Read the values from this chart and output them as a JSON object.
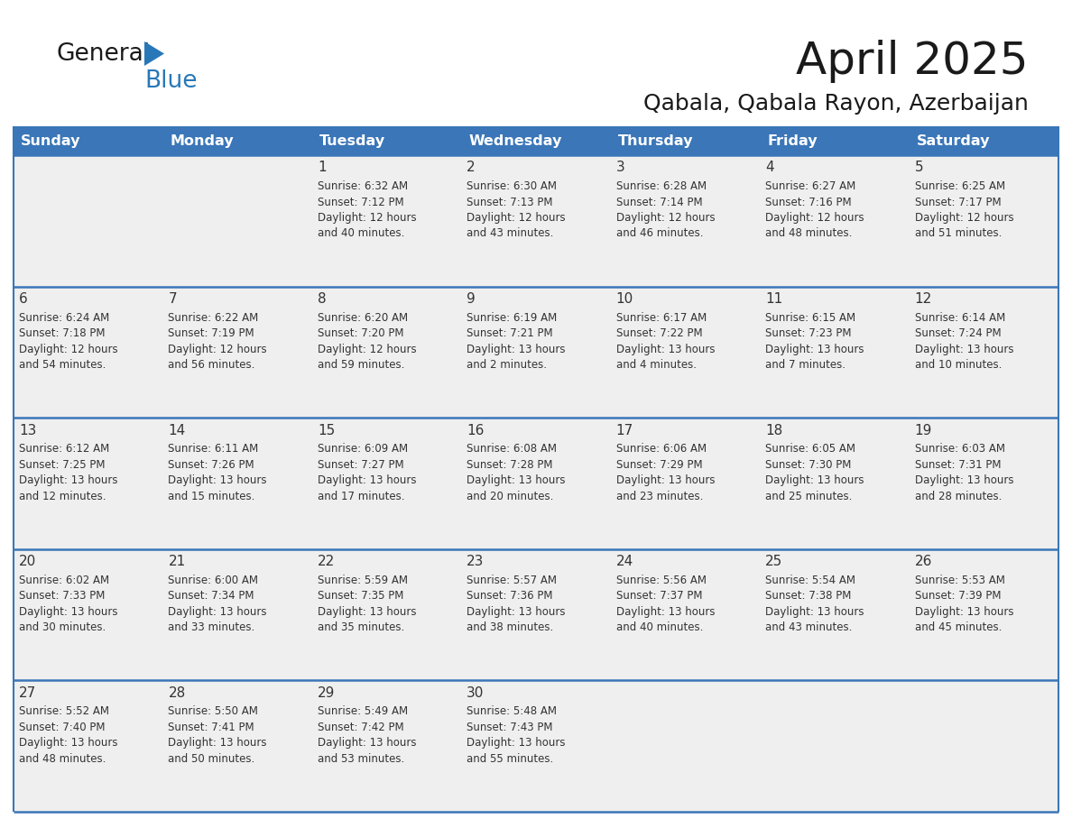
{
  "title": "April 2025",
  "subtitle": "Qabala, Qabala Rayon, Azerbaijan",
  "days_of_week": [
    "Sunday",
    "Monday",
    "Tuesday",
    "Wednesday",
    "Thursday",
    "Friday",
    "Saturday"
  ],
  "header_bg": "#3a76b8",
  "header_text": "#ffffff",
  "cell_bg": "#efefef",
  "cell_bg_empty": "#efefef",
  "row_border_color": "#3a76b8",
  "text_color": "#333333",
  "title_color": "#1a1a1a",
  "logo_general_color": "#1a1a1a",
  "logo_blue_color": "#2878b8",
  "weeks": [
    [
      {
        "day": null,
        "text": ""
      },
      {
        "day": null,
        "text": ""
      },
      {
        "day": 1,
        "text": "Sunrise: 6:32 AM\nSunset: 7:12 PM\nDaylight: 12 hours\nand 40 minutes."
      },
      {
        "day": 2,
        "text": "Sunrise: 6:30 AM\nSunset: 7:13 PM\nDaylight: 12 hours\nand 43 minutes."
      },
      {
        "day": 3,
        "text": "Sunrise: 6:28 AM\nSunset: 7:14 PM\nDaylight: 12 hours\nand 46 minutes."
      },
      {
        "day": 4,
        "text": "Sunrise: 6:27 AM\nSunset: 7:16 PM\nDaylight: 12 hours\nand 48 minutes."
      },
      {
        "day": 5,
        "text": "Sunrise: 6:25 AM\nSunset: 7:17 PM\nDaylight: 12 hours\nand 51 minutes."
      }
    ],
    [
      {
        "day": 6,
        "text": "Sunrise: 6:24 AM\nSunset: 7:18 PM\nDaylight: 12 hours\nand 54 minutes."
      },
      {
        "day": 7,
        "text": "Sunrise: 6:22 AM\nSunset: 7:19 PM\nDaylight: 12 hours\nand 56 minutes."
      },
      {
        "day": 8,
        "text": "Sunrise: 6:20 AM\nSunset: 7:20 PM\nDaylight: 12 hours\nand 59 minutes."
      },
      {
        "day": 9,
        "text": "Sunrise: 6:19 AM\nSunset: 7:21 PM\nDaylight: 13 hours\nand 2 minutes."
      },
      {
        "day": 10,
        "text": "Sunrise: 6:17 AM\nSunset: 7:22 PM\nDaylight: 13 hours\nand 4 minutes."
      },
      {
        "day": 11,
        "text": "Sunrise: 6:15 AM\nSunset: 7:23 PM\nDaylight: 13 hours\nand 7 minutes."
      },
      {
        "day": 12,
        "text": "Sunrise: 6:14 AM\nSunset: 7:24 PM\nDaylight: 13 hours\nand 10 minutes."
      }
    ],
    [
      {
        "day": 13,
        "text": "Sunrise: 6:12 AM\nSunset: 7:25 PM\nDaylight: 13 hours\nand 12 minutes."
      },
      {
        "day": 14,
        "text": "Sunrise: 6:11 AM\nSunset: 7:26 PM\nDaylight: 13 hours\nand 15 minutes."
      },
      {
        "day": 15,
        "text": "Sunrise: 6:09 AM\nSunset: 7:27 PM\nDaylight: 13 hours\nand 17 minutes."
      },
      {
        "day": 16,
        "text": "Sunrise: 6:08 AM\nSunset: 7:28 PM\nDaylight: 13 hours\nand 20 minutes."
      },
      {
        "day": 17,
        "text": "Sunrise: 6:06 AM\nSunset: 7:29 PM\nDaylight: 13 hours\nand 23 minutes."
      },
      {
        "day": 18,
        "text": "Sunrise: 6:05 AM\nSunset: 7:30 PM\nDaylight: 13 hours\nand 25 minutes."
      },
      {
        "day": 19,
        "text": "Sunrise: 6:03 AM\nSunset: 7:31 PM\nDaylight: 13 hours\nand 28 minutes."
      }
    ],
    [
      {
        "day": 20,
        "text": "Sunrise: 6:02 AM\nSunset: 7:33 PM\nDaylight: 13 hours\nand 30 minutes."
      },
      {
        "day": 21,
        "text": "Sunrise: 6:00 AM\nSunset: 7:34 PM\nDaylight: 13 hours\nand 33 minutes."
      },
      {
        "day": 22,
        "text": "Sunrise: 5:59 AM\nSunset: 7:35 PM\nDaylight: 13 hours\nand 35 minutes."
      },
      {
        "day": 23,
        "text": "Sunrise: 5:57 AM\nSunset: 7:36 PM\nDaylight: 13 hours\nand 38 minutes."
      },
      {
        "day": 24,
        "text": "Sunrise: 5:56 AM\nSunset: 7:37 PM\nDaylight: 13 hours\nand 40 minutes."
      },
      {
        "day": 25,
        "text": "Sunrise: 5:54 AM\nSunset: 7:38 PM\nDaylight: 13 hours\nand 43 minutes."
      },
      {
        "day": 26,
        "text": "Sunrise: 5:53 AM\nSunset: 7:39 PM\nDaylight: 13 hours\nand 45 minutes."
      }
    ],
    [
      {
        "day": 27,
        "text": "Sunrise: 5:52 AM\nSunset: 7:40 PM\nDaylight: 13 hours\nand 48 minutes."
      },
      {
        "day": 28,
        "text": "Sunrise: 5:50 AM\nSunset: 7:41 PM\nDaylight: 13 hours\nand 50 minutes."
      },
      {
        "day": 29,
        "text": "Sunrise: 5:49 AM\nSunset: 7:42 PM\nDaylight: 13 hours\nand 53 minutes."
      },
      {
        "day": 30,
        "text": "Sunrise: 5:48 AM\nSunset: 7:43 PM\nDaylight: 13 hours\nand 55 minutes."
      },
      {
        "day": null,
        "text": ""
      },
      {
        "day": null,
        "text": ""
      },
      {
        "day": null,
        "text": ""
      }
    ]
  ]
}
